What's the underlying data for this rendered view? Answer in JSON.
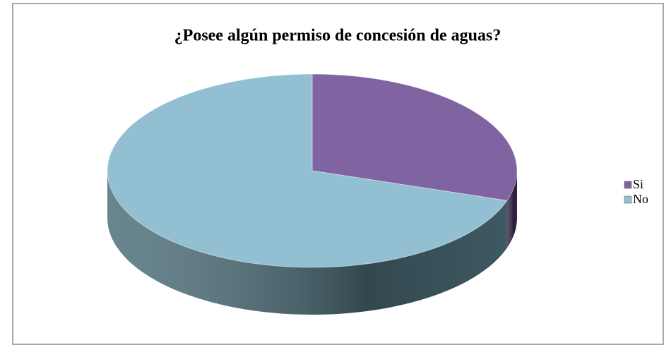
{
  "chart_data": {
    "type": "pie",
    "title": "¿Posee algún permiso de concesión de aguas?",
    "categories": [
      "Si",
      "No"
    ],
    "values": [
      30,
      70
    ],
    "colors": [
      "#8064a2",
      "#92c0d2"
    ],
    "side_colors": [
      "#3e2c52",
      "#4d6f7a"
    ],
    "legend": "right"
  }
}
